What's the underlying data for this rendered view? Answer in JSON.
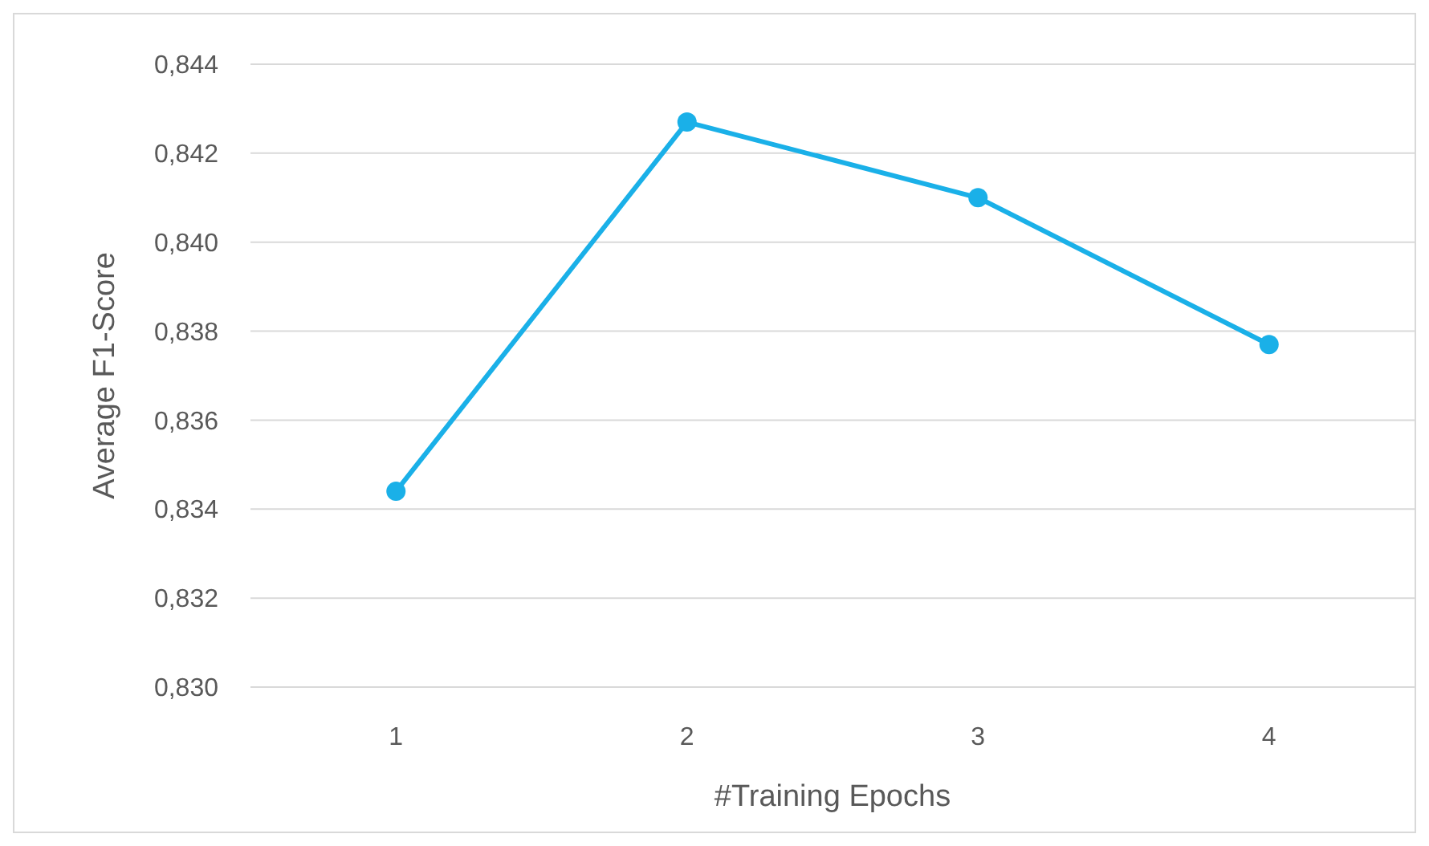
{
  "chart_data": {
    "type": "line",
    "xlabel": "#Training Epochs",
    "ylabel": "Average F1-Score",
    "categories": [
      "1",
      "2",
      "3",
      "4"
    ],
    "series": [
      {
        "color": "#1ab0e8",
        "values": [
          0.8344,
          0.8427,
          0.841,
          0.8377
        ]
      }
    ],
    "ylim": [
      0.83,
      0.844
    ],
    "yticks": [
      {
        "value": 0.83,
        "label": "0,830"
      },
      {
        "value": 0.832,
        "label": "0,832"
      },
      {
        "value": 0.834,
        "label": "0,834"
      },
      {
        "value": 0.836,
        "label": "0,836"
      },
      {
        "value": 0.838,
        "label": "0,838"
      },
      {
        "value": 0.84,
        "label": "0,840"
      },
      {
        "value": 0.842,
        "label": "0,842"
      },
      {
        "value": 0.844,
        "label": "0,844"
      }
    ],
    "grid": "y",
    "marker": "circle",
    "line_style": "solid"
  }
}
